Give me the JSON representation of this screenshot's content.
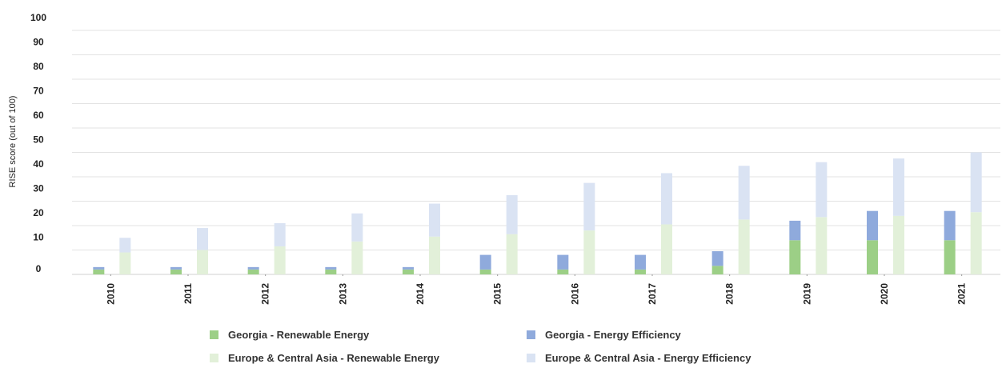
{
  "chart_data": {
    "type": "bar",
    "stacked": true,
    "ylabel": "RISE score (out of 100)",
    "ylim": [
      0,
      100
    ],
    "yticks": [
      0,
      10,
      20,
      30,
      40,
      50,
      60,
      70,
      80,
      90,
      100
    ],
    "grid": true,
    "legend_position": "bottom",
    "categories": [
      "2010",
      "2011",
      "2012",
      "2013",
      "2014",
      "2015",
      "2016",
      "2017",
      "2018",
      "2019",
      "2020",
      "2021"
    ],
    "groups": [
      {
        "name": "Georgia",
        "series": [
          {
            "name": "Georgia - Renewable Energy",
            "color": "#9ccf86",
            "values": [
              2,
              2,
              2,
              2,
              2,
              2,
              2,
              2,
              3.5,
              14,
              14,
              14
            ]
          },
          {
            "name": "Georgia - Energy Efficiency",
            "color": "#8faadc",
            "values": [
              1,
              1,
              1,
              1,
              1,
              6,
              6,
              6,
              6,
              8,
              12,
              12
            ]
          }
        ]
      },
      {
        "name": "Europe & Central Asia",
        "series": [
          {
            "name": "Europe & Central Asia - Renewable Energy",
            "color": "#e2f0d9",
            "values": [
              9,
              10,
              11.5,
              13.5,
              15.5,
              16.5,
              18,
              20.5,
              22.5,
              23.5,
              24,
              25.5
            ]
          },
          {
            "name": "Europe & Central Asia - Energy Efficiency",
            "color": "#dae3f3",
            "values": [
              6,
              9,
              9.5,
              11.5,
              13.5,
              16,
              19.5,
              21,
              22,
              22.5,
              23.5,
              24.5
            ]
          }
        ]
      }
    ]
  }
}
